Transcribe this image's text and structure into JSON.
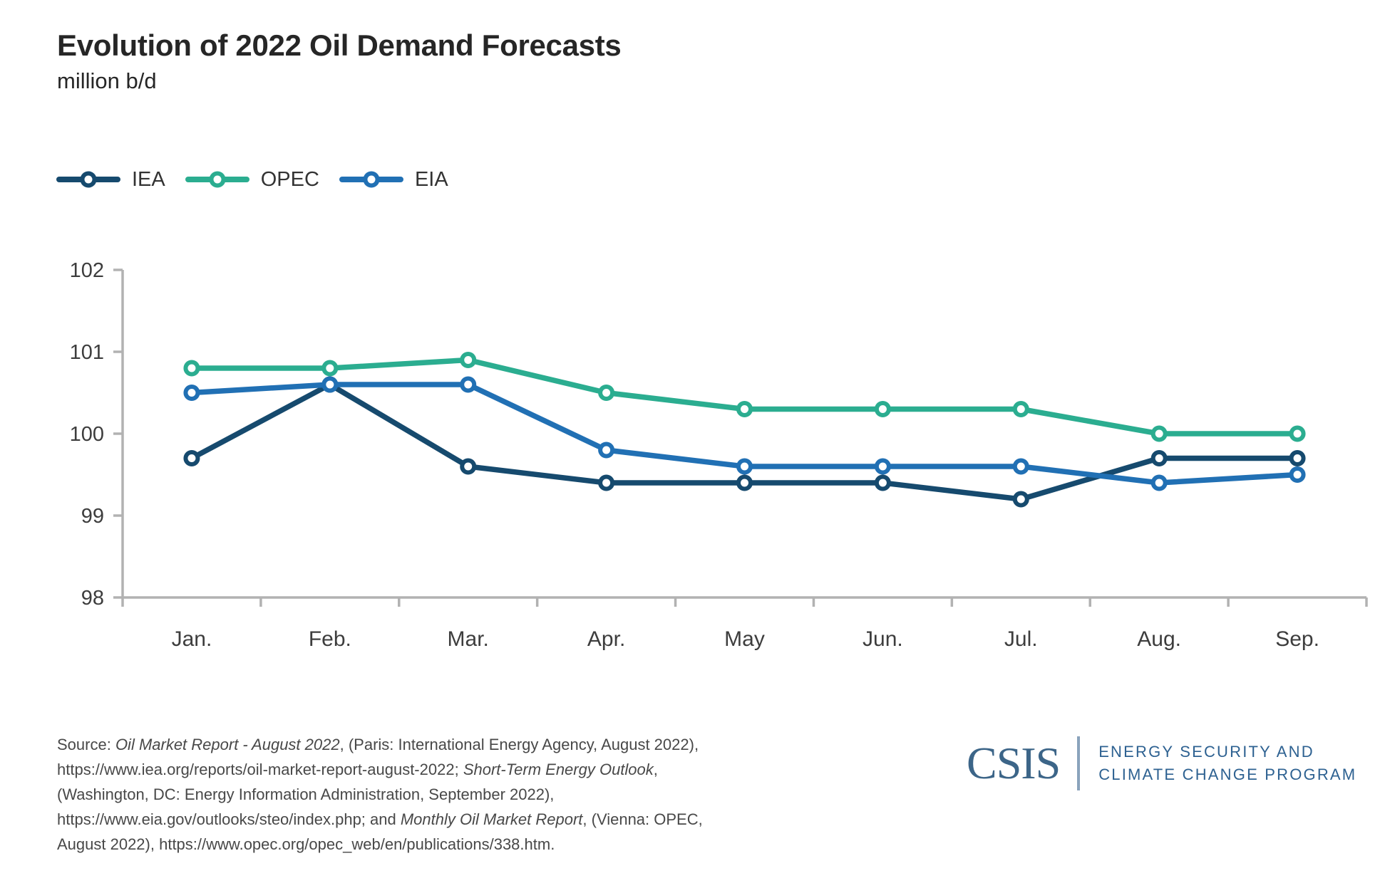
{
  "header": {
    "title": "Evolution of 2022 Oil Demand Forecasts",
    "subtitle": "million b/d"
  },
  "chart_data": {
    "type": "line",
    "title": "Evolution of 2022 Oil Demand Forecasts",
    "ylabel": "million b/d",
    "xlabel": "",
    "categories": [
      "Jan.",
      "Feb.",
      "Mar.",
      "Apr.",
      "May",
      "Jun.",
      "Jul.",
      "Aug.",
      "Sep."
    ],
    "series": [
      {
        "name": "IEA",
        "color": "#164A6E",
        "values": [
          99.7,
          100.6,
          99.6,
          99.4,
          99.4,
          99.4,
          99.2,
          99.7,
          99.7
        ]
      },
      {
        "name": "OPEC",
        "color": "#2BAD90",
        "values": [
          100.8,
          100.8,
          100.9,
          100.5,
          100.3,
          100.3,
          100.3,
          100.0,
          100.0
        ]
      },
      {
        "name": "EIA",
        "color": "#2170B4",
        "values": [
          100.5,
          100.6,
          100.6,
          99.8,
          99.6,
          99.6,
          99.6,
          99.4,
          99.5
        ]
      }
    ],
    "draw_order": [
      "IEA",
      "OPEC",
      "EIA"
    ],
    "ylim": [
      98,
      102
    ],
    "yticks": [
      "98",
      "99",
      "100",
      "101",
      "102"
    ],
    "grid": false,
    "legend_position": "top-left",
    "axis_color": "#b2b2b2"
  },
  "footer": {
    "source_lines": [
      [
        {
          "t": "Source: "
        },
        {
          "t": "Oil Market Report - August 2022",
          "i": true
        },
        {
          "t": ", (Paris: International Energy Agency, August 2022),"
        }
      ],
      [
        {
          "t": "https://www.iea.org/reports/oil-market-report-august-2022; "
        },
        {
          "t": "Short-Term Energy Outlook",
          "i": true
        },
        {
          "t": ","
        }
      ],
      [
        {
          "t": "(Washington, DC: Energy Information Administration, September 2022),"
        }
      ],
      [
        {
          "t": "https://www.eia.gov/outlooks/steo/index.php; and "
        },
        {
          "t": "Monthly Oil Market Report",
          "i": true
        },
        {
          "t": ", (Vienna: OPEC,"
        }
      ],
      [
        {
          "t": "August 2022), https://www.opec.org/opec_web/en/publications/338.htm."
        }
      ]
    ],
    "logo": {
      "wordmark": "CSIS",
      "program_line1": "ENERGY SECURITY AND",
      "program_line2": "CLIMATE CHANGE PROGRAM",
      "wordmark_color": "#3C6588",
      "program_color": "#2D6191"
    }
  }
}
